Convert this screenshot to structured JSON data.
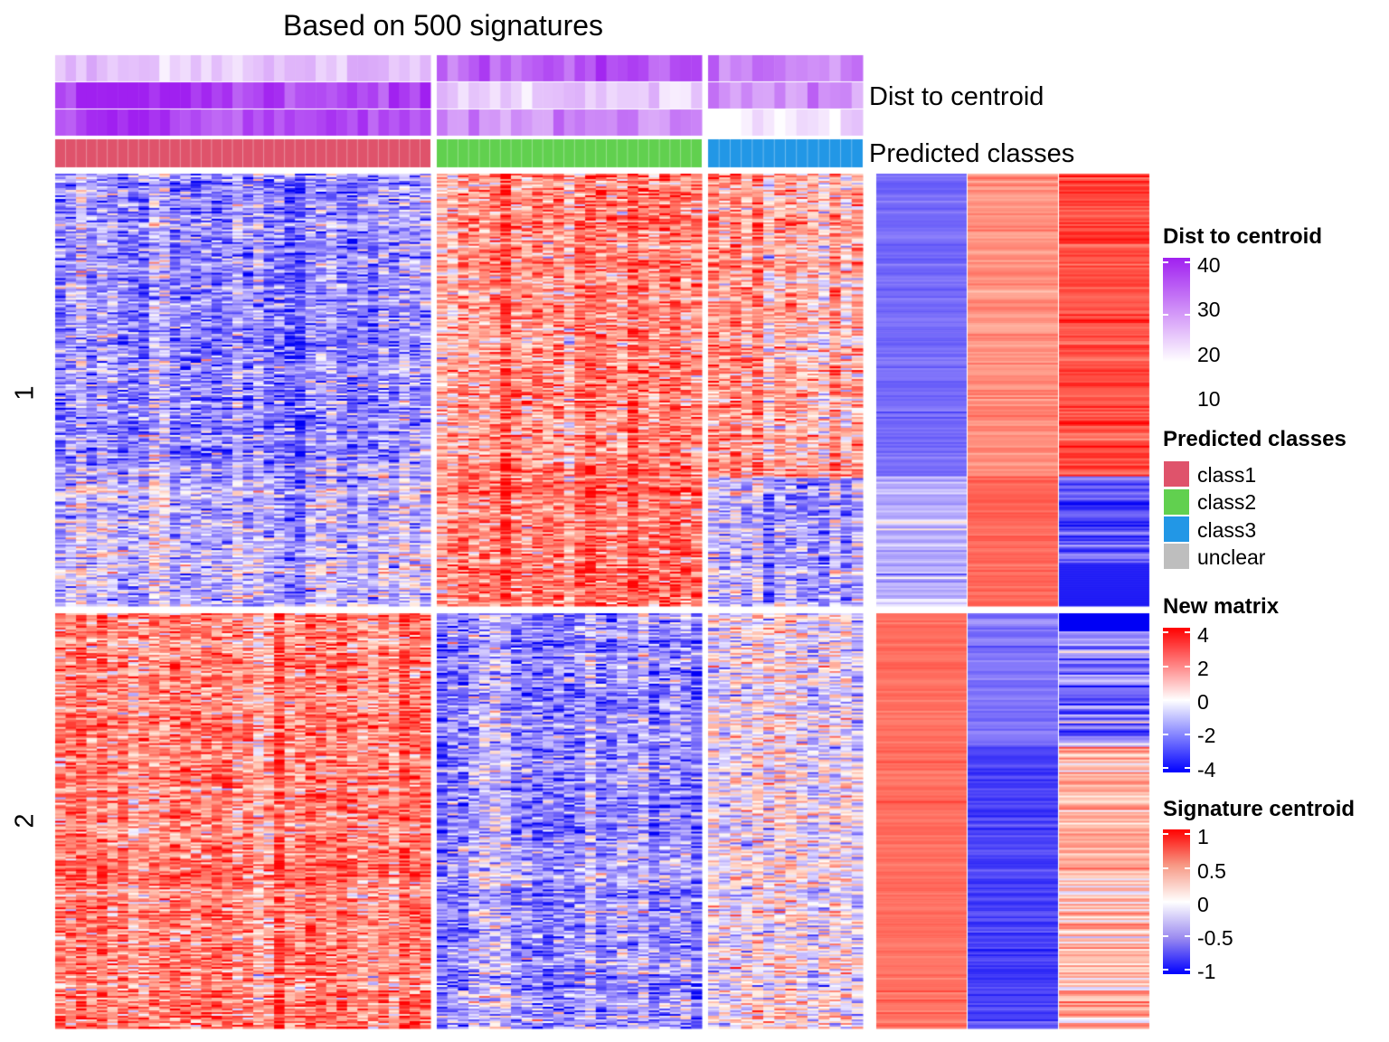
{
  "chart_data": {
    "type": "heatmap",
    "title": "Based on 500 signatures",
    "top_annotations": [
      {
        "name": "Dist to centroid",
        "rows": 3
      },
      {
        "name": "Predicted classes",
        "rows": 1
      }
    ],
    "row_slices": [
      "1",
      "2"
    ],
    "column_groups": [
      {
        "class": "class1",
        "n_samples": 36
      },
      {
        "class": "class2",
        "n_samples": 25
      },
      {
        "class": "class3",
        "n_samples": 14
      }
    ],
    "signature_centroid_columns": 3,
    "signature_centroid_pattern": {
      "slice_1": {
        "class1": "negative",
        "class2": "positive",
        "class3": "mostly positive, negative in lower rows"
      },
      "slice_2": {
        "class1": "positive",
        "class2": "negative",
        "class3": "mixed"
      }
    },
    "legends": [
      {
        "title": "Dist to centroid",
        "ticks": [
          "40",
          "30",
          "20",
          "10"
        ],
        "range": [
          10,
          40
        ],
        "colors": [
          "#ffffff",
          "#a020f0"
        ]
      },
      {
        "title": "Predicted classes",
        "items": [
          {
            "label": "class1",
            "color": "#DF536B"
          },
          {
            "label": "class2",
            "color": "#61D04F"
          },
          {
            "label": "class3",
            "color": "#2297E6"
          },
          {
            "label": "unclear",
            "color": "#BEBEBE"
          }
        ]
      },
      {
        "title": "New matrix",
        "ticks": [
          "4",
          "2",
          "0",
          "-2",
          "-4"
        ],
        "range": [
          -4,
          4
        ],
        "colors": [
          "#0000ff",
          "#ffffff",
          "#ff0000"
        ]
      },
      {
        "title": "Signature centroid",
        "ticks": [
          "1",
          "0.5",
          "0",
          "-0.5",
          "-1"
        ],
        "range": [
          -1,
          1
        ],
        "colors": [
          "#0000ff",
          "#ffffff",
          "#ff0000"
        ]
      }
    ]
  }
}
